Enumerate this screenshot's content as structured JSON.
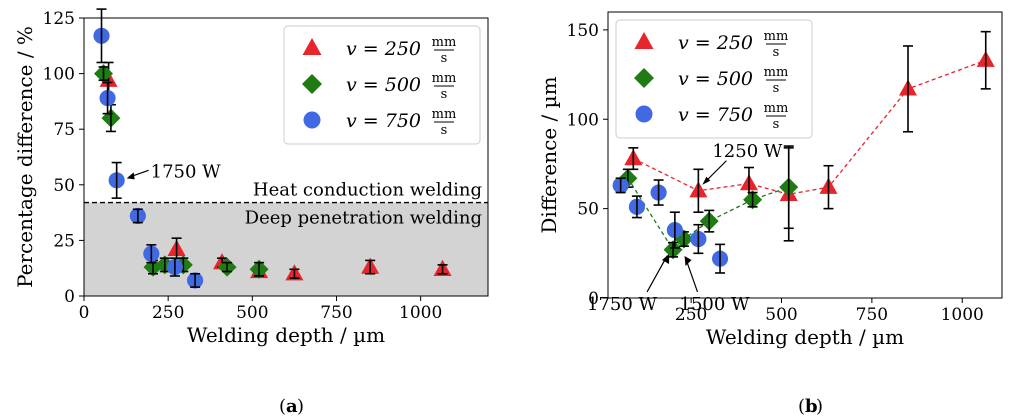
{
  "chart_data": [
    {
      "type": "scatter",
      "panel_label": "a",
      "xlabel": "Welding depth / µm",
      "ylabel": "Percentage difference / %",
      "xlim": [
        0,
        1200
      ],
      "ylim": [
        0,
        125
      ],
      "xticks": [
        0,
        250,
        500,
        750,
        1000
      ],
      "yticks": [
        0,
        25,
        50,
        75,
        100,
        125
      ],
      "grid": false,
      "legend_position": "top-right",
      "threshold": {
        "y": 42,
        "above_label": "Heat conduction welding",
        "below_label": "Deep penetration welding"
      },
      "annotations": [
        {
          "text": "1750 W",
          "x": 97,
          "y": 52
        }
      ],
      "series": [
        {
          "name": "v = 250 mm/s",
          "legend_prefix": "v = 250",
          "legend_unit_num": "mm",
          "legend_unit_den": "s",
          "marker": "triangle",
          "color": "#e8252a",
          "x": [
            73,
            275,
            410,
            520,
            625,
            850,
            1065
          ],
          "y": [
            97,
            21,
            15,
            11,
            10,
            13,
            12
          ],
          "err": [
            8,
            5,
            2,
            2,
            2,
            3,
            2
          ]
        },
        {
          "name": "v = 500 mm/s",
          "legend_prefix": "v = 500",
          "legend_unit_num": "mm",
          "legend_unit_den": "s",
          "marker": "diamond",
          "color": "#1e7c12",
          "x": [
            58,
            80,
            205,
            240,
            295,
            425,
            520
          ],
          "y": [
            100,
            80,
            13,
            14,
            14,
            13,
            12
          ],
          "err": [
            3,
            6,
            3,
            3,
            3,
            2,
            3
          ]
        },
        {
          "name": "v = 750 mm/s",
          "legend_prefix": "v = 750",
          "legend_unit_num": "mm",
          "legend_unit_den": "s",
          "marker": "circle",
          "color": "#4169e1",
          "x": [
            52,
            70,
            97,
            160,
            200,
            270,
            330
          ],
          "y": [
            117,
            89,
            52,
            36,
            19,
            13,
            7
          ],
          "err": [
            12,
            7,
            8,
            3,
            4,
            4,
            3
          ]
        }
      ]
    },
    {
      "type": "line",
      "panel_label": "b",
      "xlabel": "Welding depth / µm",
      "ylabel": "Difference / µm",
      "xlim": [
        20,
        1110
      ],
      "ylim": [
        0,
        160
      ],
      "xticks": [
        250,
        500,
        750,
        1000
      ],
      "yticks": [
        0,
        50,
        100,
        150
      ],
      "grid": false,
      "legend_position": "top-left",
      "annotations": [
        {
          "text": "1250 W",
          "x": 270,
          "y": 60
        },
        {
          "text": "1750 W",
          "x": 200,
          "y": 28
        },
        {
          "text": "1500 W",
          "x": 240,
          "y": 28
        }
      ],
      "series": [
        {
          "name": "v = 250 mm/s",
          "legend_prefix": "v = 250",
          "legend_unit_num": "mm",
          "legend_unit_den": "s",
          "marker": "triangle",
          "color": "#e8252a",
          "line": "dashed",
          "x": [
            90,
            270,
            410,
            520,
            630,
            850,
            1065
          ],
          "y": [
            78,
            60,
            64,
            58,
            62,
            117,
            133
          ],
          "err": [
            6,
            12,
            9,
            26,
            12,
            24,
            16
          ]
        },
        {
          "name": "v = 500 mm/s",
          "legend_prefix": "v = 500",
          "legend_unit_num": "mm",
          "legend_unit_den": "s",
          "marker": "diamond",
          "color": "#1e7c12",
          "line": "dashed",
          "x": [
            75,
            200,
            230,
            300,
            420,
            520
          ],
          "y": [
            67,
            27,
            33,
            43,
            55,
            62
          ],
          "err": [
            5,
            4,
            4,
            6,
            4,
            23
          ]
        },
        {
          "name": "v = 750 mm/s",
          "legend_prefix": "v = 750",
          "legend_unit_num": "mm",
          "legend_unit_den": "s",
          "marker": "circle",
          "color": "#4169e1",
          "line": "none",
          "x": [
            55,
            100,
            160,
            205,
            270,
            330
          ],
          "y": [
            63,
            51,
            59,
            38,
            33,
            22
          ],
          "err": [
            4,
            6,
            7,
            10,
            8,
            8
          ]
        }
      ]
    }
  ]
}
